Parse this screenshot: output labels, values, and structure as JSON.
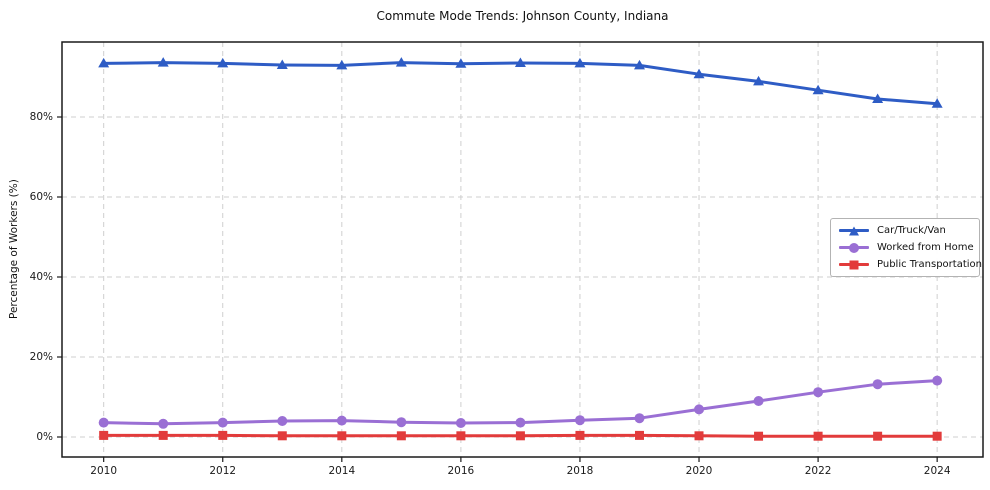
{
  "chart_data": {
    "type": "line",
    "title": "Commute Mode Trends: Johnson County, Indiana",
    "xlabel": "",
    "ylabel": "Percentage of Workers (%)",
    "x": [
      2010,
      2011,
      2012,
      2013,
      2014,
      2015,
      2016,
      2017,
      2018,
      2019,
      2020,
      2021,
      2022,
      2023,
      2024
    ],
    "xticks": [
      2010,
      2012,
      2014,
      2016,
      2018,
      2020,
      2022,
      2024
    ],
    "yticks": [
      0,
      20,
      40,
      60,
      80
    ],
    "ytick_labels": [
      "0%",
      "20%",
      "40%",
      "60%",
      "80%"
    ],
    "xlim": [
      2009.3,
      2024.77
    ],
    "ylim": [
      -5,
      98.75
    ],
    "grid": true,
    "grid_color": "#cfcfcf",
    "legend_position": "center-right",
    "series": [
      {
        "name": "Car/Truck/Van",
        "color": "#2e5cc5",
        "marker": "triangle",
        "values": [
          93.4,
          93.6,
          93.4,
          93.0,
          92.9,
          93.6,
          93.3,
          93.5,
          93.4,
          92.9,
          90.7,
          88.9,
          86.7,
          84.5,
          83.3
        ]
      },
      {
        "name": "Worked from Home",
        "color": "#9a6fd4",
        "marker": "circle",
        "values": [
          3.6,
          3.3,
          3.6,
          4.0,
          4.1,
          3.7,
          3.5,
          3.6,
          4.2,
          4.7,
          6.9,
          9.0,
          11.2,
          13.2,
          14.1
        ]
      },
      {
        "name": "Public Transportation",
        "color": "#e23b3b",
        "marker": "square",
        "values": [
          0.4,
          0.4,
          0.4,
          0.3,
          0.3,
          0.3,
          0.3,
          0.3,
          0.4,
          0.4,
          0.3,
          0.2,
          0.2,
          0.2,
          0.2
        ]
      }
    ]
  }
}
